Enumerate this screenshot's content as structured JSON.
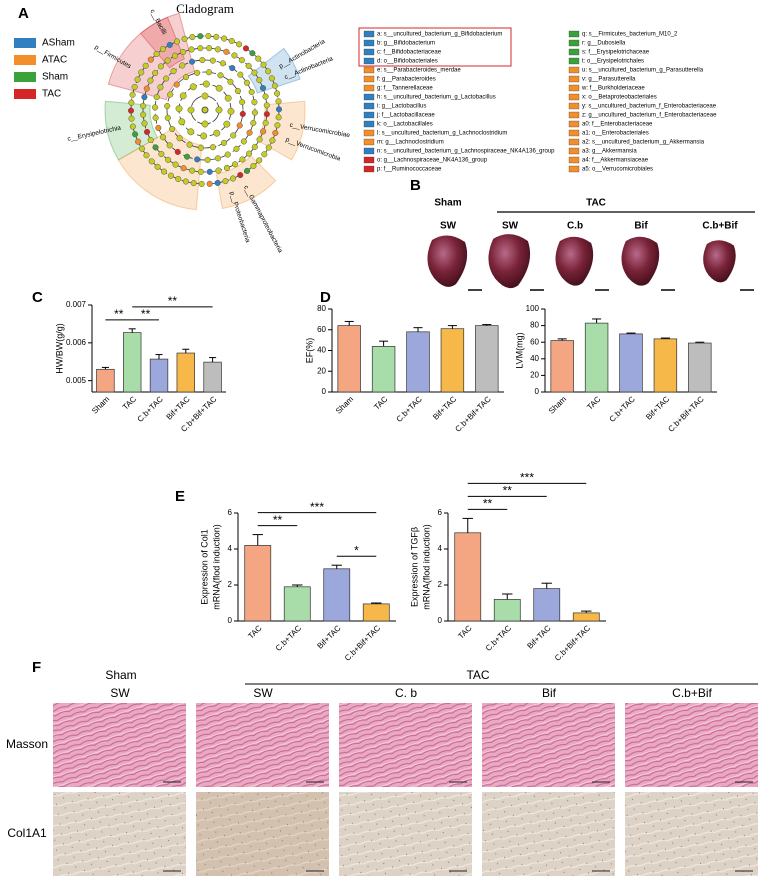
{
  "panels": [
    "A",
    "B",
    "C",
    "D",
    "E",
    "F"
  ],
  "cladogram": {
    "title": "Cladogram",
    "groups": [
      {
        "name": "ASham",
        "color": "#2f7fc1"
      },
      {
        "name": "ATAC",
        "color": "#f28e2b"
      },
      {
        "name": "Sham",
        "color": "#3aa23a"
      },
      {
        "name": "TAC",
        "color": "#d62728"
      }
    ],
    "clade_labels": [
      {
        "text": "p__Firmicutes",
        "group": "TAC"
      },
      {
        "text": "c__Bacilli",
        "group": "TAC"
      },
      {
        "text": "c__Erysipelotrichia",
        "group": "Sham"
      },
      {
        "text": "p__Actinobacteria",
        "group": "ASham"
      },
      {
        "text": "c__Actinobacteria",
        "group": "ASham"
      },
      {
        "text": "c__Verrucomicrobiae",
        "group": "ATAC"
      },
      {
        "text": "p__Verrucomicrobia",
        "group": "ATAC"
      },
      {
        "text": "c__Gammaproteobacteria",
        "group": "ATAC"
      },
      {
        "text": "p__Proteobacteria",
        "group": "ATAC"
      }
    ],
    "taxa": [
      {
        "text": "a: s__uncultured_bacterium_g_Bifidobacterium",
        "group": "ASham"
      },
      {
        "text": "b: g__Bifidobacterium",
        "group": "ASham"
      },
      {
        "text": "c: f__Bifidobacteriaceae",
        "group": "ASham"
      },
      {
        "text": "d: o__Bifidobacteriales",
        "group": "ASham"
      },
      {
        "text": "e: s__Parabacteroides_merdae",
        "group": "ATAC"
      },
      {
        "text": "f: g__Parabacteroides",
        "group": "ATAC"
      },
      {
        "text": "g: f__Tannerellaceae",
        "group": "ATAC"
      },
      {
        "text": "h: s__uncultured_bacterium_g_Lactobacillus",
        "group": "ASham"
      },
      {
        "text": "i: g__Lactobacillus",
        "group": "ASham"
      },
      {
        "text": "j: f__Lactobacillaceae",
        "group": "ASham"
      },
      {
        "text": "k: o__Lactobacillales",
        "group": "ASham"
      },
      {
        "text": "l: s__uncultured_bacterium_g_Lachnoclostridium",
        "group": "ATAC"
      },
      {
        "text": "m: g__Lachnoclostridium",
        "group": "ATAC"
      },
      {
        "text": "n: s__uncultured_bacterium_g_Lachnospiraceae_NK4A136_group",
        "group": "ASham"
      },
      {
        "text": "o: g__Lachnospiraceae_NK4A136_group",
        "group": "TAC"
      },
      {
        "text": "p: f__Ruminococcaceae",
        "group": "TAC"
      },
      {
        "text": "q: s__Firmicutes_bacterium_M10_2",
        "group": "Sham"
      },
      {
        "text": "r: g__Dubosiella",
        "group": "Sham"
      },
      {
        "text": "s: f__Erysipelotrichaceae",
        "group": "Sham"
      },
      {
        "text": "t: o__Erysipelotrichales",
        "group": "Sham"
      },
      {
        "text": "u: s__uncultured_bacterium_g_Parasutterella",
        "group": "ATAC"
      },
      {
        "text": "v: g__Parasutterella",
        "group": "ATAC"
      },
      {
        "text": "w: f__Burkholderiaceae",
        "group": "ATAC"
      },
      {
        "text": "x: o__Betaproteobacteriales",
        "group": "ATAC"
      },
      {
        "text": "y: s__uncultured_bacterium_f_Enterobacteriaceae",
        "group": "ATAC"
      },
      {
        "text": "z: g__uncultured_bacterium_f_Enterobacteriaceae",
        "group": "ATAC"
      },
      {
        "text": "a0: f__Enterobacteriaceae",
        "group": "ATAC"
      },
      {
        "text": "a1: o__Enterobacteriales",
        "group": "ATAC"
      },
      {
        "text": "a2: s__uncultured_bacterium_g_Akkermansia",
        "group": "ATAC"
      },
      {
        "text": "a3: g__Akkermansia",
        "group": "ATAC"
      },
      {
        "text": "a4: f__Akkermansiaceae",
        "group": "ATAC"
      },
      {
        "text": "a5: o__Verrucomicrobiales",
        "group": "ATAC"
      }
    ]
  },
  "hearts": {
    "group_labels": [
      "Sham",
      "TAC"
    ],
    "column_labels": [
      "SW",
      "SW",
      "C.b",
      "Bif",
      "C.b+Bif"
    ]
  },
  "chart_data": [
    {
      "type": "bar",
      "ylabel": [
        "HW/BW(g/g)"
      ],
      "categories": [
        "Sham",
        "TAC",
        "C.b+TAC",
        "Bif+TAC",
        "C.b+Bif+TAC"
      ],
      "values": [
        0.0053,
        0.00627,
        0.00557,
        0.00573,
        0.00549
      ],
      "errors": [
        5e-05,
        0.0001,
        0.00012,
        0.0001,
        0.00012
      ],
      "colors": [
        "#f4a582",
        "#a8dca8",
        "#9ca8dc",
        "#f7b84a",
        "#bdbdbd"
      ],
      "ylim": [
        0.0047,
        0.007
      ],
      "yticks": [
        0.005,
        0.006,
        0.007
      ],
      "annotations": [
        {
          "text": "**",
          "between": [
            "Sham",
            "TAC"
          ]
        },
        {
          "text": "**",
          "between": [
            "TAC",
            "C.b+TAC"
          ]
        },
        {
          "text": "**",
          "between": [
            "TAC",
            "C.b+Bif+TAC"
          ]
        }
      ]
    },
    {
      "type": "bar",
      "ylabel": [
        "EF(%)"
      ],
      "categories": [
        "Sham",
        "TAC",
        "C.b+TAC",
        "Bif+TAC",
        "C.b+Bif+TAC"
      ],
      "values": [
        64,
        44,
        58,
        61,
        64
      ],
      "errors": [
        4,
        5,
        4,
        3,
        1
      ],
      "colors": [
        "#f4a582",
        "#a8dca8",
        "#9ca8dc",
        "#f7b84a",
        "#bdbdbd"
      ],
      "ylim": [
        0,
        80
      ],
      "yticks": [
        0,
        20,
        40,
        60,
        80
      ],
      "annotations": []
    },
    {
      "type": "bar",
      "ylabel": [
        "LVM(mg)"
      ],
      "categories": [
        "Sham",
        "TAC",
        "C.b+TAC",
        "Bif+TAC",
        "C.b+Bif+TAC"
      ],
      "values": [
        62,
        83,
        70,
        64,
        59
      ],
      "errors": [
        2,
        5,
        1,
        1,
        1
      ],
      "colors": [
        "#f4a582",
        "#a8dca8",
        "#9ca8dc",
        "#f7b84a",
        "#bdbdbd"
      ],
      "ylim": [
        0,
        100
      ],
      "yticks": [
        0,
        20,
        40,
        60,
        80,
        100
      ],
      "annotations": []
    },
    {
      "type": "bar",
      "ylabel": [
        "Expression of Col1",
        "mRNA(flod induction)"
      ],
      "categories": [
        "TAC",
        "C.b+TAC",
        "Bif+TAC",
        "C.b+Bif+TAC"
      ],
      "values": [
        4.2,
        1.9,
        2.9,
        0.95
      ],
      "errors": [
        0.6,
        0.1,
        0.2,
        0.05
      ],
      "colors": [
        "#f4a582",
        "#a8dca8",
        "#9ca8dc",
        "#f7b84a"
      ],
      "ylim": [
        0,
        6
      ],
      "yticks": [
        0,
        2,
        4,
        6
      ],
      "annotations": [
        {
          "text": "**",
          "between": [
            "TAC",
            "C.b+TAC"
          ]
        },
        {
          "text": "***",
          "between": [
            "TAC",
            "C.b+Bif+TAC"
          ]
        },
        {
          "text": "*",
          "between": [
            "Bif+TAC",
            "C.b+Bif+TAC"
          ]
        }
      ]
    },
    {
      "type": "bar",
      "ylabel": [
        "Expression of TGFβ",
        "mRNA(flod induction)"
      ],
      "categories": [
        "TAC",
        "C.b+TAC",
        "Bif+TAC",
        "C.b+Bif+TAC"
      ],
      "values": [
        4.9,
        1.2,
        1.8,
        0.45
      ],
      "errors": [
        0.8,
        0.3,
        0.3,
        0.1
      ],
      "colors": [
        "#f4a582",
        "#a8dca8",
        "#9ca8dc",
        "#f7b84a"
      ],
      "ylim": [
        0,
        6
      ],
      "yticks": [
        0,
        2,
        4,
        6
      ],
      "annotations": [
        {
          "text": "**",
          "between": [
            "TAC",
            "C.b+TAC"
          ]
        },
        {
          "text": "**",
          "between": [
            "TAC",
            "Bif+TAC"
          ]
        },
        {
          "text": "***",
          "between": [
            "TAC",
            "C.b+Bif+TAC"
          ]
        }
      ]
    }
  ],
  "histology": {
    "group_labels": [
      "Sham",
      "TAC"
    ],
    "column_labels": [
      "SW",
      "SW",
      "C. b",
      "Bif",
      "C.b+Bif"
    ],
    "row_labels": [
      "Masson",
      "Col1A1"
    ]
  }
}
